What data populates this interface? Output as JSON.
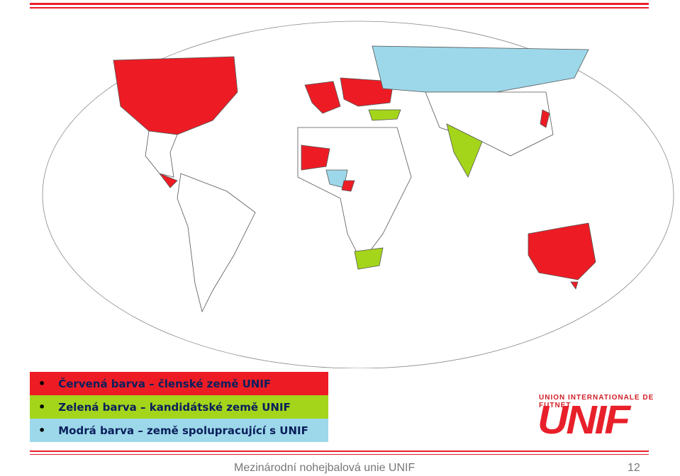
{
  "legend": [
    {
      "text": "Červená barva – členské země UNIF",
      "color": "#ed1c24"
    },
    {
      "text": "Zelená barva – kandidátské země UNIF",
      "color": "#a4d51b"
    },
    {
      "text": "Modrá barva – země spolupracující s UNIF",
      "color": "#9dd8ea"
    }
  ],
  "logo": {
    "tagline": "UNION INTERNATIONALE DE FUTNET",
    "name": "UNIF"
  },
  "footer": {
    "text": "Mezinárodní nohejbalová unie UNIF",
    "page": "12"
  }
}
